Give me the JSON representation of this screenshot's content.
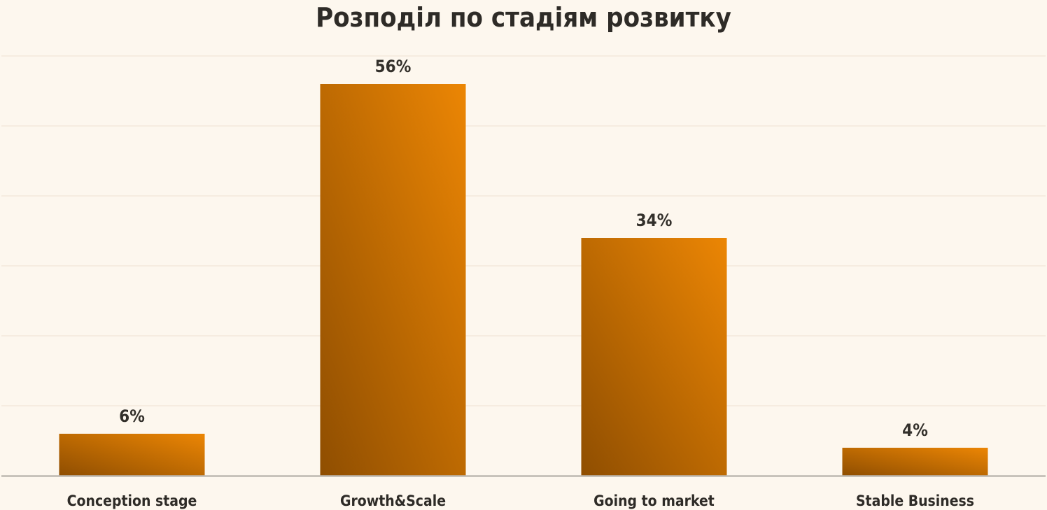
{
  "chart_data": {
    "type": "bar",
    "title": "Розподіл по стадіям розвитку",
    "xlabel": "",
    "ylabel": "",
    "categories": [
      "Conception stage",
      "Growth&Scale",
      "Going to market",
      "Stable Business"
    ],
    "values": [
      6,
      56,
      34,
      4
    ],
    "value_labels": [
      "6%",
      "56%",
      "34%",
      "4%"
    ],
    "unit": "%",
    "ylim": [
      0,
      60
    ],
    "grid": true,
    "legend": "none",
    "colors": {
      "background": "#fdf7ee",
      "bar_light": "#ec8604",
      "bar_dark": "#8f4e01",
      "gridline": "#f3e9dc",
      "baseline": "#bdb8b1",
      "text": "#2e2b27"
    }
  }
}
